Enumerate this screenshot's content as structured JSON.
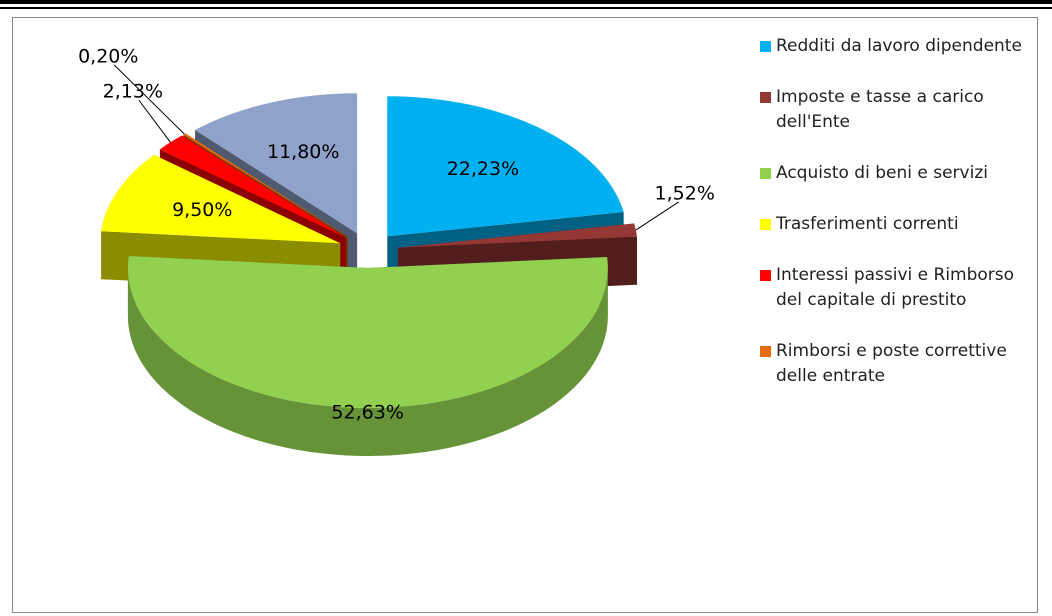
{
  "chart_data": {
    "type": "pie",
    "categories": [
      "Redditi da lavoro dipendente",
      "Imposte e tasse a carico dell'Ente",
      "Acquisto di beni e servizi",
      "Trasferimenti correnti",
      "Interessi passivi e Rimborso del capitale di prestito",
      "Rimborsi e poste correttive delle entrate",
      null
    ],
    "values": [
      22.23,
      1.52,
      52.63,
      9.5,
      2.13,
      0.2,
      11.8
    ],
    "value_labels": [
      "22,23%",
      "1,52%",
      "52,63%",
      "9,50%",
      "2,13%",
      "0,20%",
      "11,80%"
    ],
    "colors": [
      "#00b0f0",
      "#953735",
      "#92d050",
      "#ffff00",
      "#ff0000",
      "#e46c0a",
      "#8fa2c9"
    ],
    "legend": "right"
  }
}
